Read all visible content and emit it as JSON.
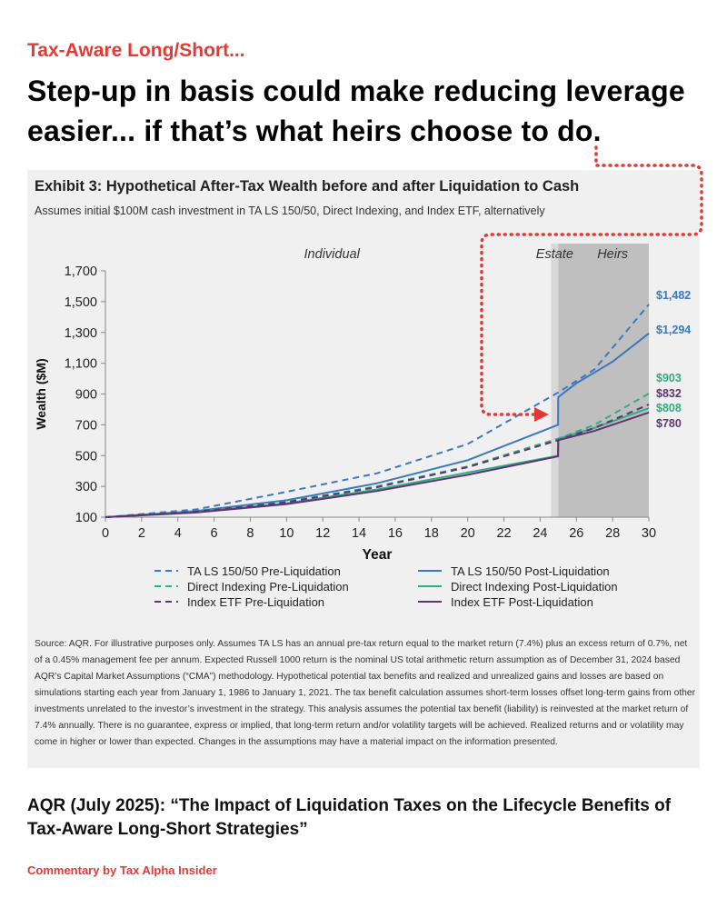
{
  "kicker": "Tax-Aware Long/Short...",
  "headline": "Step-up in basis could make reducing leverage easier... if that’s what heirs choose to do.",
  "exhibit": {
    "title": "Exhibit 3: Hypothetical After-Tax Wealth before and after Liquidation to Cash",
    "subtitle": "Assumes initial $100M cash investment in TA LS 150/50, Direct Indexing, and Index ETF, alternatively",
    "source": "Source: AQR. For illustrative purposes only. Assumes TA LS has an annual pre-tax return equal to the market return (7.4%) plus an excess return of 0.7%, net of a 0.45% management fee per annum. Expected Russell 1000 return is the nominal US total arithmetic return assumption as of December 31, 2024 based AQR’s Capital Market Assumptions (“CMA”) methodology. Hypothetical potential tax benefits and realized and unrealized gains and losses are based on simulations starting each year from January 1, 1986 to January 1, 2021. The tax benefit calculation assumes short-term losses offset long-term gains from other investments unrelated to the investor’s investment in the strategy. This analysis assumes the potential tax benefit (liability) is reinvested at the market return of 7.4% annually. There is no guarantee, express or implied, that long-term return and/or volatility targets will be achieved. Realized returns and or volatility may come in higher or lower than expected. Changes in the assumptions may have a material impact on the information presented."
  },
  "citation": "AQR (July 2025): “The Impact of Liquidation Taxes on the Lifecycle Benefits of Tax-Aware Long-Short Strategies”",
  "credit": "Commentary by Tax Alpha Insider",
  "chart_data": {
    "type": "line",
    "xlabel": "Year",
    "ylabel": "Wealth ($M)",
    "xlim": [
      0,
      30
    ],
    "ylim": [
      100,
      1700
    ],
    "x_ticks": [
      0,
      2,
      4,
      6,
      8,
      10,
      12,
      14,
      16,
      18,
      20,
      22,
      24,
      26,
      28,
      30
    ],
    "y_ticks": [
      100,
      300,
      500,
      700,
      900,
      1100,
      1300,
      1500,
      1700
    ],
    "grid": false,
    "legend_position": "bottom",
    "region_labels": [
      {
        "text": "Individual",
        "x": 12.5
      },
      {
        "text": "Estate",
        "x": 24.8
      },
      {
        "text": "Heirs",
        "x": 28
      }
    ],
    "estate_band": [
      24.6,
      25
    ],
    "heirs_band": [
      25,
      30
    ],
    "series": [
      {
        "name": "TA LS 150/50 Pre-Liquidation",
        "color": "#3a78c0",
        "dash": true,
        "points": [
          [
            0,
            100
          ],
          [
            5,
            150
          ],
          [
            10,
            265
          ],
          [
            15,
            385
          ],
          [
            20,
            575
          ],
          [
            25,
            910
          ],
          [
            27,
            1060
          ],
          [
            30,
            1482
          ]
        ],
        "end_label": "$1,482"
      },
      {
        "name": "TA LS 150/50 Post-Liquidation",
        "color": "#3a78c0",
        "dash": false,
        "points": [
          [
            0,
            100
          ],
          [
            5,
            140
          ],
          [
            10,
            210
          ],
          [
            15,
            320
          ],
          [
            20,
            470
          ],
          [
            24.99,
            700
          ],
          [
            25,
            880
          ],
          [
            26,
            970
          ],
          [
            27,
            1040
          ],
          [
            28,
            1110
          ],
          [
            30,
            1294
          ]
        ],
        "end_label": "$1,294"
      },
      {
        "name": "Direct Indexing Pre-Liquidation",
        "color": "#2fae82",
        "dash": true,
        "points": [
          [
            0,
            100
          ],
          [
            5,
            137
          ],
          [
            10,
            200
          ],
          [
            15,
            300
          ],
          [
            20,
            430
          ],
          [
            25,
            610
          ],
          [
            27,
            700
          ],
          [
            30,
            903
          ]
        ],
        "end_label": "$903"
      },
      {
        "name": "Direct Indexing Post-Liquidation",
        "color": "#2fae82",
        "dash": false,
        "points": [
          [
            0,
            100
          ],
          [
            5,
            133
          ],
          [
            10,
            190
          ],
          [
            15,
            280
          ],
          [
            20,
            390
          ],
          [
            24.99,
            500
          ],
          [
            25,
            610
          ],
          [
            27,
            680
          ],
          [
            30,
            808
          ]
        ],
        "end_label": "$808"
      },
      {
        "name": "Index ETF Pre-Liquidation",
        "color": "#5e3472",
        "dash": true,
        "points": [
          [
            0,
            100
          ],
          [
            5,
            136
          ],
          [
            10,
            197
          ],
          [
            15,
            295
          ],
          [
            20,
            425
          ],
          [
            25,
            600
          ],
          [
            27,
            680
          ],
          [
            30,
            832
          ]
        ],
        "end_label": "$832"
      },
      {
        "name": "Index ETF Post-Liquidation",
        "color": "#5e3472",
        "dash": false,
        "points": [
          [
            0,
            100
          ],
          [
            5,
            130
          ],
          [
            10,
            185
          ],
          [
            15,
            270
          ],
          [
            20,
            375
          ],
          [
            24.99,
            495
          ],
          [
            25,
            600
          ],
          [
            27,
            660
          ],
          [
            30,
            780
          ]
        ],
        "end_label": "$780"
      }
    ]
  }
}
